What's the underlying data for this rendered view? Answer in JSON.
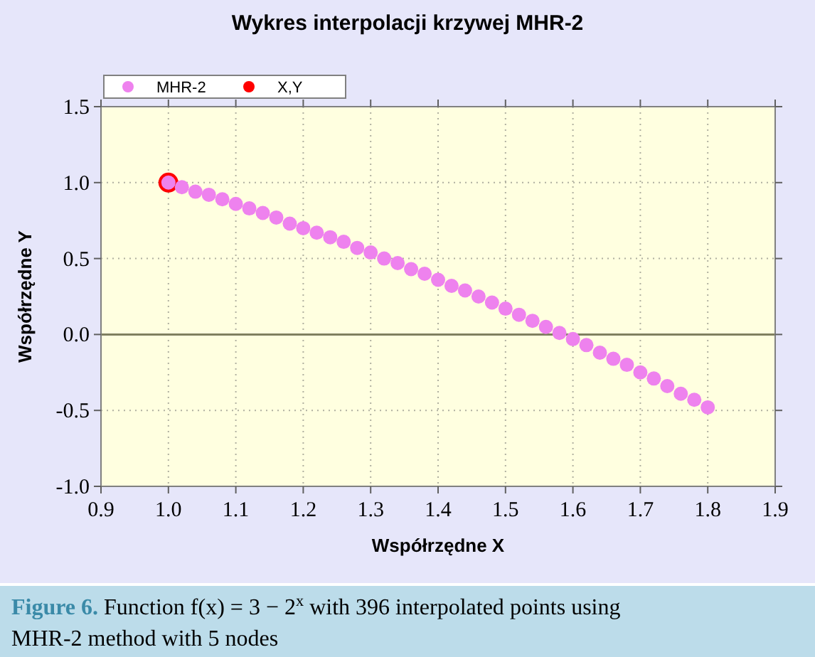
{
  "chart_data": {
    "type": "scatter",
    "title": "Wykres interpolacji krzywej MHR-2",
    "xlabel": "Współrzędne X",
    "ylabel": "Współrzędne Y",
    "annotations": [
      "Figure 6.",
      "Function f(x) = 3 − 2$^{x}$ with 396 interpolated points using MHR-2 method with 5 nodes"
    ],
    "series": [
      {
        "name": "X,Y",
        "color": "#ff0000",
        "x": [
          1.0
        ],
        "values": [
          1.0
        ]
      },
      {
        "name": "MHR-2",
        "color": "#ee82ee",
        "x": [
          1.0,
          1.02,
          1.04,
          1.06,
          1.08,
          1.1,
          1.12,
          1.14,
          1.16,
          1.18,
          1.2,
          1.22,
          1.24,
          1.26,
          1.28,
          1.3,
          1.32,
          1.34,
          1.36,
          1.38,
          1.4,
          1.42,
          1.44,
          1.46,
          1.48,
          1.5,
          1.52,
          1.54,
          1.56,
          1.58,
          1.6,
          1.62,
          1.64,
          1.66,
          1.68,
          1.7,
          1.72,
          1.74,
          1.76,
          1.78,
          1.8
        ],
        "values": [
          1.0,
          0.97,
          0.94,
          0.92,
          0.89,
          0.86,
          0.83,
          0.8,
          0.77,
          0.73,
          0.7,
          0.67,
          0.64,
          0.61,
          0.57,
          0.54,
          0.5,
          0.47,
          0.43,
          0.4,
          0.36,
          0.32,
          0.29,
          0.25,
          0.21,
          0.17,
          0.13,
          0.09,
          0.05,
          0.01,
          -0.03,
          -0.07,
          -0.12,
          -0.16,
          -0.2,
          -0.25,
          -0.29,
          -0.34,
          -0.39,
          -0.43,
          -0.48
        ]
      }
    ],
    "xlim": [
      0.9,
      1.9
    ],
    "xticks": [
      0.9,
      {
        "value": 1,
        "label": "1.0"
      },
      1.1,
      1.2,
      1.3,
      1.4,
      1.5,
      1.6,
      1.7,
      1.8,
      1.9
    ],
    "ylim": [
      -1,
      1.5
    ],
    "yticks": [
      {
        "value": -1,
        "label": "-1.0"
      },
      {
        "value": -0.5,
        "label": "-0.5"
      },
      {
        "value": 0,
        "label": "0.0"
      },
      {
        "value": 0.5,
        "label": "0.5"
      },
      {
        "value": 1,
        "label": "1.0"
      },
      {
        "value": 1.5,
        "label": "1.5"
      }
    ],
    "ref_lines": [
      {
        "axis": "y",
        "value": 0,
        "color": "#808060"
      }
    ],
    "grid": true,
    "legend": "top",
    "marker": "circle"
  }
}
